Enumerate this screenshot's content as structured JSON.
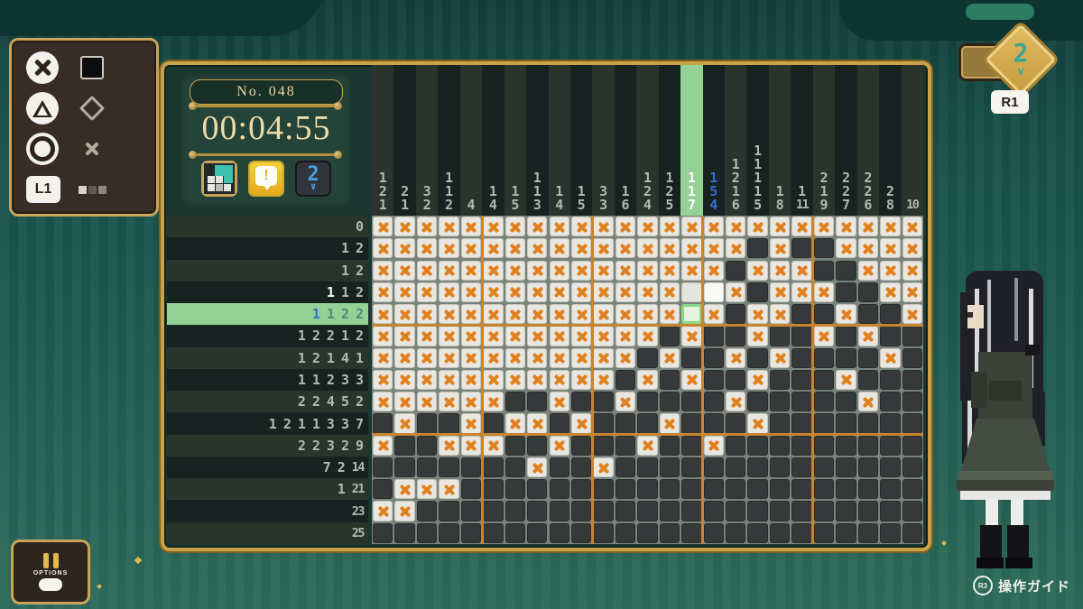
{
  "info": {
    "puzzle_no": "No. 048",
    "timer": "00:04:55",
    "number_button_label": "2",
    "number_button_chevron": "∨"
  },
  "controls": {
    "l1_label": "L1"
  },
  "gauge": {
    "value": "2",
    "chevron": "∨",
    "button_label": "R1"
  },
  "options": {
    "label": "OPTIONS"
  },
  "guide": {
    "icon_label": "R3",
    "label": "操作ガイド"
  },
  "puzzle": {
    "rows": 15,
    "cols": 25,
    "section_every": 5,
    "highlight_row": 5,
    "highlight_col": 15,
    "col_clues": [
      {
        "n": [
          1,
          2,
          1
        ]
      },
      {
        "n": [
          2,
          1
        ]
      },
      {
        "n": [
          3,
          2
        ]
      },
      {
        "n": [
          1,
          1,
          2
        ]
      },
      {
        "n": [
          4
        ]
      },
      {
        "n": [
          1,
          4
        ]
      },
      {
        "n": [
          1,
          5
        ]
      },
      {
        "n": [
          1,
          1,
          3
        ]
      },
      {
        "n": [
          1,
          4
        ]
      },
      {
        "n": [
          1,
          5
        ]
      },
      {
        "n": [
          3,
          3
        ]
      },
      {
        "n": [
          1,
          6
        ]
      },
      {
        "n": [
          1,
          2,
          4
        ]
      },
      {
        "n": [
          1,
          2,
          5
        ]
      },
      {
        "n": [
          1,
          1,
          7
        ],
        "c": "w",
        "hl": true
      },
      {
        "n": [
          1,
          5,
          4
        ],
        "c": "b"
      },
      {
        "n": [
          1,
          2,
          1,
          6
        ]
      },
      {
        "n": [
          1,
          1,
          1,
          1,
          5
        ]
      },
      {
        "n": [
          1,
          8
        ]
      },
      {
        "n": [
          1,
          11
        ]
      },
      {
        "n": [
          2,
          1,
          9
        ]
      },
      {
        "n": [
          2,
          2,
          7
        ]
      },
      {
        "n": [
          2,
          2,
          6
        ]
      },
      {
        "n": [
          2,
          8
        ]
      },
      {
        "n": [
          10
        ]
      }
    ],
    "row_clues": [
      {
        "n": [
          0
        ]
      },
      {
        "n": [
          1,
          2
        ]
      },
      {
        "n": [
          1,
          2
        ]
      },
      {
        "n": [
          1,
          1,
          2
        ],
        "dc": [
          "w",
          "g",
          "g"
        ]
      },
      {
        "n": [
          1,
          1,
          2,
          2
        ],
        "dc": [
          "b",
          "t",
          "t",
          "t"
        ],
        "hl": true
      },
      {
        "n": [
          1,
          2,
          2,
          1,
          2
        ]
      },
      {
        "n": [
          1,
          2,
          1,
          4,
          1
        ]
      },
      {
        "n": [
          1,
          1,
          2,
          3,
          3
        ]
      },
      {
        "n": [
          2,
          2,
          4,
          5,
          2
        ]
      },
      {
        "n": [
          1,
          2,
          1,
          1,
          3,
          3,
          7
        ]
      },
      {
        "n": [
          2,
          2,
          3,
          2,
          9
        ]
      },
      {
        "n": [
          7,
          2,
          14
        ]
      },
      {
        "n": [
          1,
          21
        ]
      },
      {
        "n": [
          23
        ]
      },
      {
        "n": [
          25
        ]
      }
    ],
    "cells": [
      "xxxxxxxxxxxxxxxxxxxxxxxxx",
      "xxxxxxxxxxxxxxxxxfxffxxxx",
      "xxxxxxxxxxxxxxxxfxxxffxxx",
      "xxxxxxxxxxxxxxeExfxxxffxx",
      "xxxxxxxxxxxxxxcxfxxffxffx",
      "xxxxxxxxxxxxxfxffxffxfxff",
      "xxxxxxxxxxxxfxffxfxffffxf",
      "xxxxxxxxxxxfxfxffxfffxfff",
      "xxxxxxffxffxffffxfffffxff",
      "fxffxfxxfxfffxfffxfffffff",
      "xffxxxffxfffxffxfffffffff",
      "fffffffxffxffffffffffffff",
      "fxxxfffffffffffffffffffff",
      "xxfffffffffffffffffffffff",
      "fffffffffffffffffffffffff"
    ],
    "legend": {
      "x": "crossed-out",
      "f": "filled",
      "e": "empty",
      "E": "empty-bright",
      "c": "cursor"
    },
    "colors": {
      "mark_x": "#e0801f",
      "fill_dark": "#36383a",
      "highlight_green": "#95d095",
      "cursor_border": "#86d986",
      "clue_gray": "#b2bab2",
      "clue_white": "#ffffff",
      "clue_blue": "#2f6fd8",
      "clue_teal": "#4e8a79",
      "section_line": "#c9842e"
    }
  }
}
